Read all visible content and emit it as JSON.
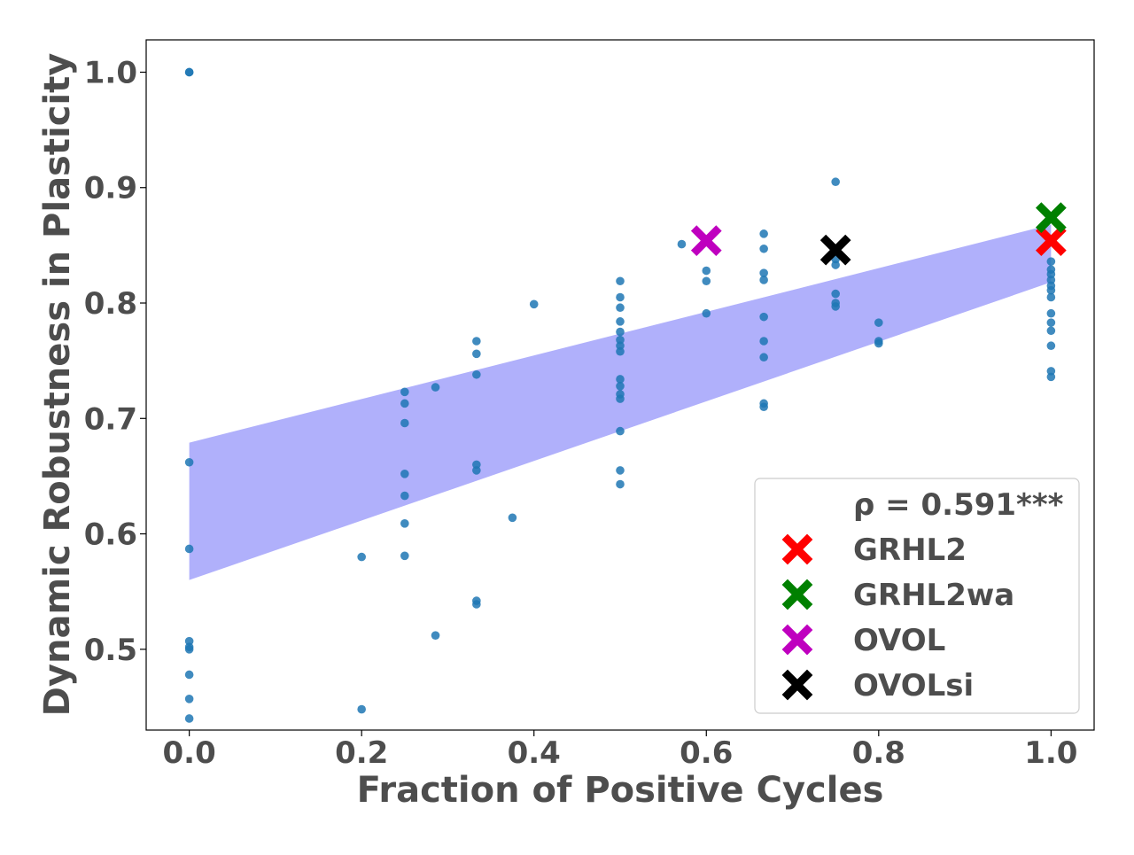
{
  "chart_data": {
    "type": "scatter",
    "title": "",
    "xlabel": "Fraction of Positive Cycles",
    "ylabel": "Dynamic Robustness in Plasticity",
    "xlim": [
      -0.05,
      1.05
    ],
    "ylim": [
      0.43,
      1.028
    ],
    "xticks": [
      0.0,
      0.2,
      0.4,
      0.6,
      0.8,
      1.0
    ],
    "xtick_labels": [
      "0.0",
      "0.2",
      "0.4",
      "0.6",
      "0.8",
      "1.0"
    ],
    "yticks": [
      0.5,
      0.6,
      0.7,
      0.8,
      0.9,
      1.0
    ],
    "ytick_labels": [
      "0.5",
      "0.6",
      "0.7",
      "0.8",
      "0.9",
      "1.0"
    ],
    "grid": false,
    "legend_position": "bottom-right",
    "point_color": "#1f77b4",
    "band_color": "#b0b0fb",
    "scatter_points": [
      [
        0.0,
        1.0
      ],
      [
        0.0,
        1.0
      ],
      [
        0.0,
        0.662
      ],
      [
        0.0,
        0.587
      ],
      [
        0.0,
        0.507
      ],
      [
        0.0,
        0.502
      ],
      [
        0.0,
        0.5
      ],
      [
        0.0,
        0.478
      ],
      [
        0.0,
        0.457
      ],
      [
        0.0,
        0.44
      ],
      [
        0.2,
        0.58
      ],
      [
        0.2,
        0.448
      ],
      [
        0.25,
        0.723
      ],
      [
        0.25,
        0.713
      ],
      [
        0.25,
        0.696
      ],
      [
        0.25,
        0.652
      ],
      [
        0.25,
        0.633
      ],
      [
        0.25,
        0.609
      ],
      [
        0.25,
        0.581
      ],
      [
        0.2857,
        0.727
      ],
      [
        0.2857,
        0.512
      ],
      [
        0.3333,
        0.767
      ],
      [
        0.3333,
        0.756
      ],
      [
        0.3333,
        0.738
      ],
      [
        0.3333,
        0.66
      ],
      [
        0.3333,
        0.655
      ],
      [
        0.3333,
        0.542
      ],
      [
        0.3333,
        0.539
      ],
      [
        0.375,
        0.614
      ],
      [
        0.4,
        0.799
      ],
      [
        0.5,
        0.819
      ],
      [
        0.5,
        0.805
      ],
      [
        0.5,
        0.796
      ],
      [
        0.5,
        0.784
      ],
      [
        0.5,
        0.775
      ],
      [
        0.5,
        0.768
      ],
      [
        0.5,
        0.763
      ],
      [
        0.5,
        0.758
      ],
      [
        0.5,
        0.734
      ],
      [
        0.5,
        0.728
      ],
      [
        0.5,
        0.721
      ],
      [
        0.5,
        0.717
      ],
      [
        0.5,
        0.689
      ],
      [
        0.5,
        0.655
      ],
      [
        0.5,
        0.643
      ],
      [
        0.5714,
        0.851
      ],
      [
        0.6,
        0.828
      ],
      [
        0.6,
        0.819
      ],
      [
        0.6,
        0.791
      ],
      [
        0.6667,
        0.86
      ],
      [
        0.6667,
        0.847
      ],
      [
        0.6667,
        0.826
      ],
      [
        0.6667,
        0.82
      ],
      [
        0.6667,
        0.788
      ],
      [
        0.6667,
        0.767
      ],
      [
        0.6667,
        0.753
      ],
      [
        0.6667,
        0.713
      ],
      [
        0.6667,
        0.71
      ],
      [
        0.75,
        0.905
      ],
      [
        0.75,
        0.838
      ],
      [
        0.75,
        0.833
      ],
      [
        0.75,
        0.808
      ],
      [
        0.75,
        0.8
      ],
      [
        0.75,
        0.797
      ],
      [
        0.8,
        0.783
      ],
      [
        0.8,
        0.767
      ],
      [
        0.8,
        0.765
      ],
      [
        1.0,
        0.836
      ],
      [
        1.0,
        0.829
      ],
      [
        1.0,
        0.825
      ],
      [
        1.0,
        0.82
      ],
      [
        1.0,
        0.815
      ],
      [
        1.0,
        0.811
      ],
      [
        1.0,
        0.805
      ],
      [
        1.0,
        0.791
      ],
      [
        1.0,
        0.783
      ],
      [
        1.0,
        0.776
      ],
      [
        1.0,
        0.763
      ],
      [
        1.0,
        0.741
      ],
      [
        1.0,
        0.736
      ]
    ],
    "confidence_band": {
      "x": [
        0.0,
        1.0
      ],
      "upper": [
        0.679,
        0.868
      ],
      "lower": [
        0.56,
        0.818
      ]
    },
    "highlighted": [
      {
        "name": "GRHL2",
        "x": 1.0,
        "y": 0.854,
        "color": "#ff0000"
      },
      {
        "name": "GRHL2wa",
        "x": 1.0,
        "y": 0.874,
        "color": "#008000"
      },
      {
        "name": "OVOL",
        "x": 0.6,
        "y": 0.854,
        "color": "#bf00bf"
      },
      {
        "name": "OVOLsi",
        "x": 0.75,
        "y": 0.846,
        "color": "#000000"
      }
    ],
    "annotation": "ρ = 0.591***"
  }
}
